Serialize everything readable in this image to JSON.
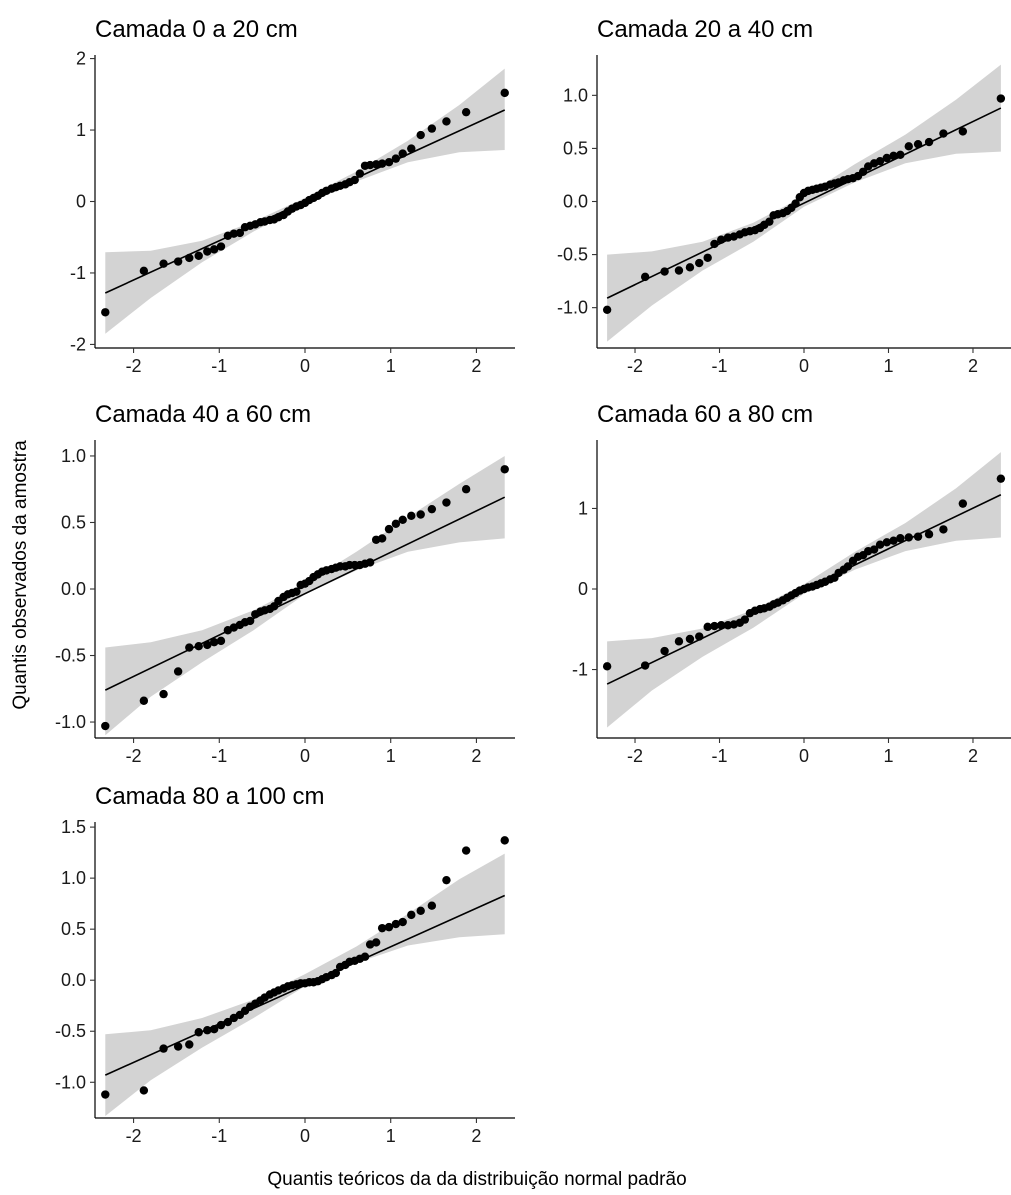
{
  "figure": {
    "ylabel": "Quantis observados da amostra",
    "xlabel": "Quantis teóricos da da distribuição normal padrão"
  },
  "style": {
    "band_color": "#d3d3d3",
    "line_color": "#000000",
    "point_color": "#000000"
  },
  "chart_data": [
    {
      "type": "scatter",
      "title": "Camada 0 a 20 cm",
      "xlim": [
        -2.45,
        2.45
      ],
      "ylim": [
        -2.05,
        2.05
      ],
      "xticks": [
        "-2",
        "-1",
        "0",
        "1",
        "2"
      ],
      "yticks": [
        "-2",
        "-1",
        "0",
        "1",
        "2"
      ],
      "ref_line": {
        "x": [
          -2.33,
          2.33
        ],
        "y": [
          -1.28,
          1.28
        ]
      },
      "confidence_band": {
        "x": [
          -2.33,
          -1.8,
          -1.2,
          -0.6,
          0,
          0.6,
          1.2,
          1.8,
          2.33
        ],
        "lower": [
          -1.85,
          -1.35,
          -0.85,
          -0.42,
          -0.05,
          0.28,
          0.55,
          0.69,
          0.72
        ],
        "upper": [
          -0.71,
          -0.69,
          -0.55,
          -0.28,
          0.05,
          0.42,
          0.85,
          1.35,
          1.86
        ]
      },
      "points": {
        "x": [
          -2.33,
          -1.88,
          -1.65,
          -1.48,
          -1.35,
          -1.24,
          -1.14,
          -1.06,
          -0.98,
          -0.9,
          -0.83,
          -0.76,
          -0.7,
          -0.64,
          -0.58,
          -0.52,
          -0.47,
          -0.41,
          -0.36,
          -0.31,
          -0.25,
          -0.2,
          -0.15,
          -0.1,
          -0.05,
          0,
          0.05,
          0.1,
          0.15,
          0.2,
          0.25,
          0.31,
          0.36,
          0.41,
          0.47,
          0.52,
          0.58,
          0.64,
          0.7,
          0.76,
          0.83,
          0.9,
          0.98,
          1.06,
          1.14,
          1.24,
          1.35,
          1.48,
          1.65,
          1.88,
          2.33
        ],
        "y": [
          -1.55,
          -0.97,
          -0.87,
          -0.84,
          -0.79,
          -0.76,
          -0.7,
          -0.67,
          -0.63,
          -0.48,
          -0.45,
          -0.44,
          -0.36,
          -0.34,
          -0.32,
          -0.29,
          -0.28,
          -0.26,
          -0.25,
          -0.22,
          -0.19,
          -0.14,
          -0.1,
          -0.07,
          -0.05,
          -0.02,
          0.02,
          0.05,
          0.08,
          0.12,
          0.15,
          0.18,
          0.2,
          0.22,
          0.24,
          0.27,
          0.3,
          0.39,
          0.5,
          0.51,
          0.52,
          0.53,
          0.55,
          0.6,
          0.67,
          0.74,
          0.93,
          1.02,
          1.12,
          1.25,
          1.52
        ]
      }
    },
    {
      "type": "scatter",
      "title": "Camada 20 a 40 cm",
      "xlim": [
        -2.45,
        2.45
      ],
      "ylim": [
        -1.38,
        1.38
      ],
      "xticks": [
        "-2",
        "-1",
        "0",
        "1",
        "2"
      ],
      "yticks": [
        "-1.0",
        "-0.5",
        "0.0",
        "0.5",
        "1.0"
      ],
      "ref_line": {
        "x": [
          -2.33,
          2.33
        ],
        "y": [
          -0.91,
          0.88
        ]
      },
      "confidence_band": {
        "x": [
          -2.33,
          -1.8,
          -1.2,
          -0.6,
          0,
          0.6,
          1.2,
          1.8,
          2.33
        ],
        "lower": [
          -1.32,
          -0.98,
          -0.65,
          -0.38,
          -0.05,
          0.18,
          0.36,
          0.45,
          0.47
        ],
        "upper": [
          -0.5,
          -0.47,
          -0.38,
          -0.2,
          0.05,
          0.35,
          0.63,
          0.96,
          1.29
        ]
      },
      "points": {
        "x": [
          -2.33,
          -1.88,
          -1.65,
          -1.48,
          -1.35,
          -1.24,
          -1.14,
          -1.06,
          -0.98,
          -0.9,
          -0.83,
          -0.76,
          -0.7,
          -0.64,
          -0.58,
          -0.52,
          -0.47,
          -0.41,
          -0.36,
          -0.31,
          -0.25,
          -0.2,
          -0.15,
          -0.1,
          -0.05,
          0,
          0.05,
          0.1,
          0.15,
          0.2,
          0.25,
          0.31,
          0.36,
          0.41,
          0.47,
          0.52,
          0.58,
          0.64,
          0.7,
          0.76,
          0.83,
          0.9,
          0.98,
          1.06,
          1.14,
          1.24,
          1.35,
          1.48,
          1.65,
          1.88,
          2.33
        ],
        "y": [
          -1.02,
          -0.71,
          -0.66,
          -0.65,
          -0.62,
          -0.58,
          -0.53,
          -0.4,
          -0.36,
          -0.34,
          -0.33,
          -0.31,
          -0.29,
          -0.28,
          -0.27,
          -0.25,
          -0.22,
          -0.19,
          -0.13,
          -0.12,
          -0.11,
          -0.09,
          -0.06,
          -0.02,
          0.04,
          0.08,
          0.1,
          0.11,
          0.12,
          0.13,
          0.14,
          0.16,
          0.17,
          0.18,
          0.2,
          0.21,
          0.22,
          0.24,
          0.28,
          0.33,
          0.36,
          0.38,
          0.41,
          0.43,
          0.44,
          0.52,
          0.54,
          0.56,
          0.64,
          0.66,
          0.97
        ]
      }
    },
    {
      "type": "scatter",
      "title": "Camada 40 a 60 cm",
      "xlim": [
        -2.45,
        2.45
      ],
      "ylim": [
        -1.12,
        1.12
      ],
      "xticks": [
        "-2",
        "-1",
        "0",
        "1",
        "2"
      ],
      "yticks": [
        "-1.0",
        "-0.5",
        "0.0",
        "0.5",
        "1.0"
      ],
      "ref_line": {
        "x": [
          -2.33,
          2.33
        ],
        "y": [
          -0.76,
          0.69
        ]
      },
      "confidence_band": {
        "x": [
          -2.33,
          -1.8,
          -1.2,
          -0.6,
          0,
          0.6,
          1.2,
          1.8,
          2.33
        ],
        "lower": [
          -1.1,
          -0.81,
          -0.55,
          -0.31,
          -0.04,
          0.14,
          0.28,
          0.35,
          0.38
        ],
        "upper": [
          -0.44,
          -0.4,
          -0.31,
          -0.16,
          0.04,
          0.28,
          0.54,
          0.79,
          1.0
        ]
      },
      "points": {
        "x": [
          -2.33,
          -1.88,
          -1.65,
          -1.48,
          -1.35,
          -1.24,
          -1.14,
          -1.06,
          -0.98,
          -0.9,
          -0.83,
          -0.76,
          -0.7,
          -0.64,
          -0.58,
          -0.52,
          -0.47,
          -0.41,
          -0.36,
          -0.31,
          -0.25,
          -0.2,
          -0.15,
          -0.1,
          -0.05,
          0,
          0.05,
          0.1,
          0.15,
          0.2,
          0.25,
          0.31,
          0.36,
          0.41,
          0.47,
          0.52,
          0.58,
          0.64,
          0.7,
          0.76,
          0.83,
          0.9,
          0.98,
          1.06,
          1.14,
          1.24,
          1.35,
          1.48,
          1.65,
          1.88,
          2.33
        ],
        "y": [
          -1.03,
          -0.84,
          -0.79,
          -0.62,
          -0.44,
          -0.43,
          -0.42,
          -0.4,
          -0.39,
          -0.31,
          -0.29,
          -0.27,
          -0.25,
          -0.24,
          -0.19,
          -0.17,
          -0.16,
          -0.15,
          -0.13,
          -0.09,
          -0.06,
          -0.04,
          -0.03,
          -0.02,
          0.03,
          0.04,
          0.06,
          0.09,
          0.11,
          0.13,
          0.14,
          0.15,
          0.16,
          0.17,
          0.17,
          0.18,
          0.18,
          0.18,
          0.19,
          0.2,
          0.37,
          0.38,
          0.45,
          0.49,
          0.52,
          0.55,
          0.56,
          0.6,
          0.65,
          0.75,
          0.9
        ]
      }
    },
    {
      "type": "scatter",
      "title": "Camada 60 a 80 cm",
      "xlim": [
        -2.45,
        2.45
      ],
      "ylim": [
        -1.85,
        1.85
      ],
      "xticks": [
        "-2",
        "-1",
        "0",
        "1",
        "2"
      ],
      "yticks": [
        "-1",
        "0",
        "1"
      ],
      "ref_line": {
        "x": [
          -2.33,
          2.33
        ],
        "y": [
          -1.18,
          1.17
        ]
      },
      "confidence_band": {
        "x": [
          -2.33,
          -1.8,
          -1.2,
          -0.6,
          0,
          0.6,
          1.2,
          1.8,
          2.33
        ],
        "lower": [
          -1.72,
          -1.26,
          -0.84,
          -0.48,
          -0.06,
          0.24,
          0.47,
          0.6,
          0.64
        ],
        "upper": [
          -0.65,
          -0.61,
          -0.49,
          -0.26,
          0.06,
          0.46,
          0.82,
          1.25,
          1.7
        ]
      },
      "points": {
        "x": [
          -2.33,
          -1.88,
          -1.65,
          -1.48,
          -1.35,
          -1.24,
          -1.14,
          -1.06,
          -0.98,
          -0.9,
          -0.83,
          -0.76,
          -0.7,
          -0.64,
          -0.58,
          -0.52,
          -0.47,
          -0.41,
          -0.36,
          -0.31,
          -0.25,
          -0.2,
          -0.15,
          -0.1,
          -0.05,
          0,
          0.05,
          0.1,
          0.15,
          0.2,
          0.25,
          0.31,
          0.36,
          0.41,
          0.47,
          0.52,
          0.58,
          0.64,
          0.7,
          0.76,
          0.83,
          0.9,
          0.98,
          1.06,
          1.14,
          1.24,
          1.35,
          1.48,
          1.65,
          1.88,
          2.33
        ],
        "y": [
          -0.96,
          -0.95,
          -0.77,
          -0.65,
          -0.62,
          -0.59,
          -0.47,
          -0.46,
          -0.45,
          -0.45,
          -0.44,
          -0.42,
          -0.38,
          -0.3,
          -0.27,
          -0.25,
          -0.24,
          -0.22,
          -0.19,
          -0.17,
          -0.14,
          -0.11,
          -0.08,
          -0.05,
          -0.02,
          0.0,
          0.02,
          0.03,
          0.05,
          0.07,
          0.09,
          0.12,
          0.14,
          0.2,
          0.24,
          0.28,
          0.35,
          0.4,
          0.42,
          0.47,
          0.49,
          0.55,
          0.58,
          0.6,
          0.63,
          0.64,
          0.65,
          0.68,
          0.74,
          1.06,
          1.37
        ]
      }
    },
    {
      "type": "scatter",
      "title": "Camada 80 a 100 cm",
      "xlim": [
        -2.45,
        2.45
      ],
      "ylim": [
        -1.35,
        1.55
      ],
      "xticks": [
        "-2",
        "-1",
        "0",
        "1",
        "2"
      ],
      "yticks": [
        "-1.0",
        "-0.5",
        "0.0",
        "0.5",
        "1.0",
        "1.5"
      ],
      "ref_line": {
        "x": [
          -2.33,
          2.33
        ],
        "y": [
          -0.93,
          0.83
        ]
      },
      "confidence_band": {
        "x": [
          -2.33,
          -1.8,
          -1.2,
          -0.6,
          0,
          0.6,
          1.2,
          1.8,
          2.33
        ],
        "lower": [
          -1.33,
          -0.98,
          -0.66,
          -0.37,
          -0.06,
          0.17,
          0.34,
          0.42,
          0.45
        ],
        "upper": [
          -0.53,
          -0.49,
          -0.37,
          -0.19,
          0.06,
          0.33,
          0.65,
          0.99,
          1.24
        ]
      },
      "points": {
        "x": [
          -2.33,
          -1.88,
          -1.65,
          -1.48,
          -1.35,
          -1.24,
          -1.14,
          -1.06,
          -0.98,
          -0.9,
          -0.83,
          -0.76,
          -0.7,
          -0.64,
          -0.58,
          -0.52,
          -0.47,
          -0.41,
          -0.36,
          -0.31,
          -0.25,
          -0.2,
          -0.15,
          -0.1,
          -0.05,
          0,
          0.05,
          0.1,
          0.15,
          0.2,
          0.25,
          0.31,
          0.36,
          0.41,
          0.47,
          0.52,
          0.58,
          0.64,
          0.7,
          0.76,
          0.83,
          0.9,
          0.98,
          1.06,
          1.14,
          1.24,
          1.35,
          1.48,
          1.65,
          1.88,
          2.33
        ],
        "y": [
          -1.12,
          -1.08,
          -0.67,
          -0.65,
          -0.63,
          -0.51,
          -0.49,
          -0.48,
          -0.44,
          -0.41,
          -0.37,
          -0.34,
          -0.3,
          -0.26,
          -0.23,
          -0.2,
          -0.17,
          -0.14,
          -0.12,
          -0.1,
          -0.08,
          -0.06,
          -0.05,
          -0.04,
          -0.03,
          -0.03,
          -0.02,
          -0.02,
          -0.01,
          0.01,
          0.03,
          0.05,
          0.07,
          0.13,
          0.15,
          0.18,
          0.19,
          0.21,
          0.23,
          0.35,
          0.37,
          0.51,
          0.52,
          0.55,
          0.57,
          0.64,
          0.68,
          0.73,
          0.98,
          1.27,
          1.37
        ]
      }
    }
  ]
}
